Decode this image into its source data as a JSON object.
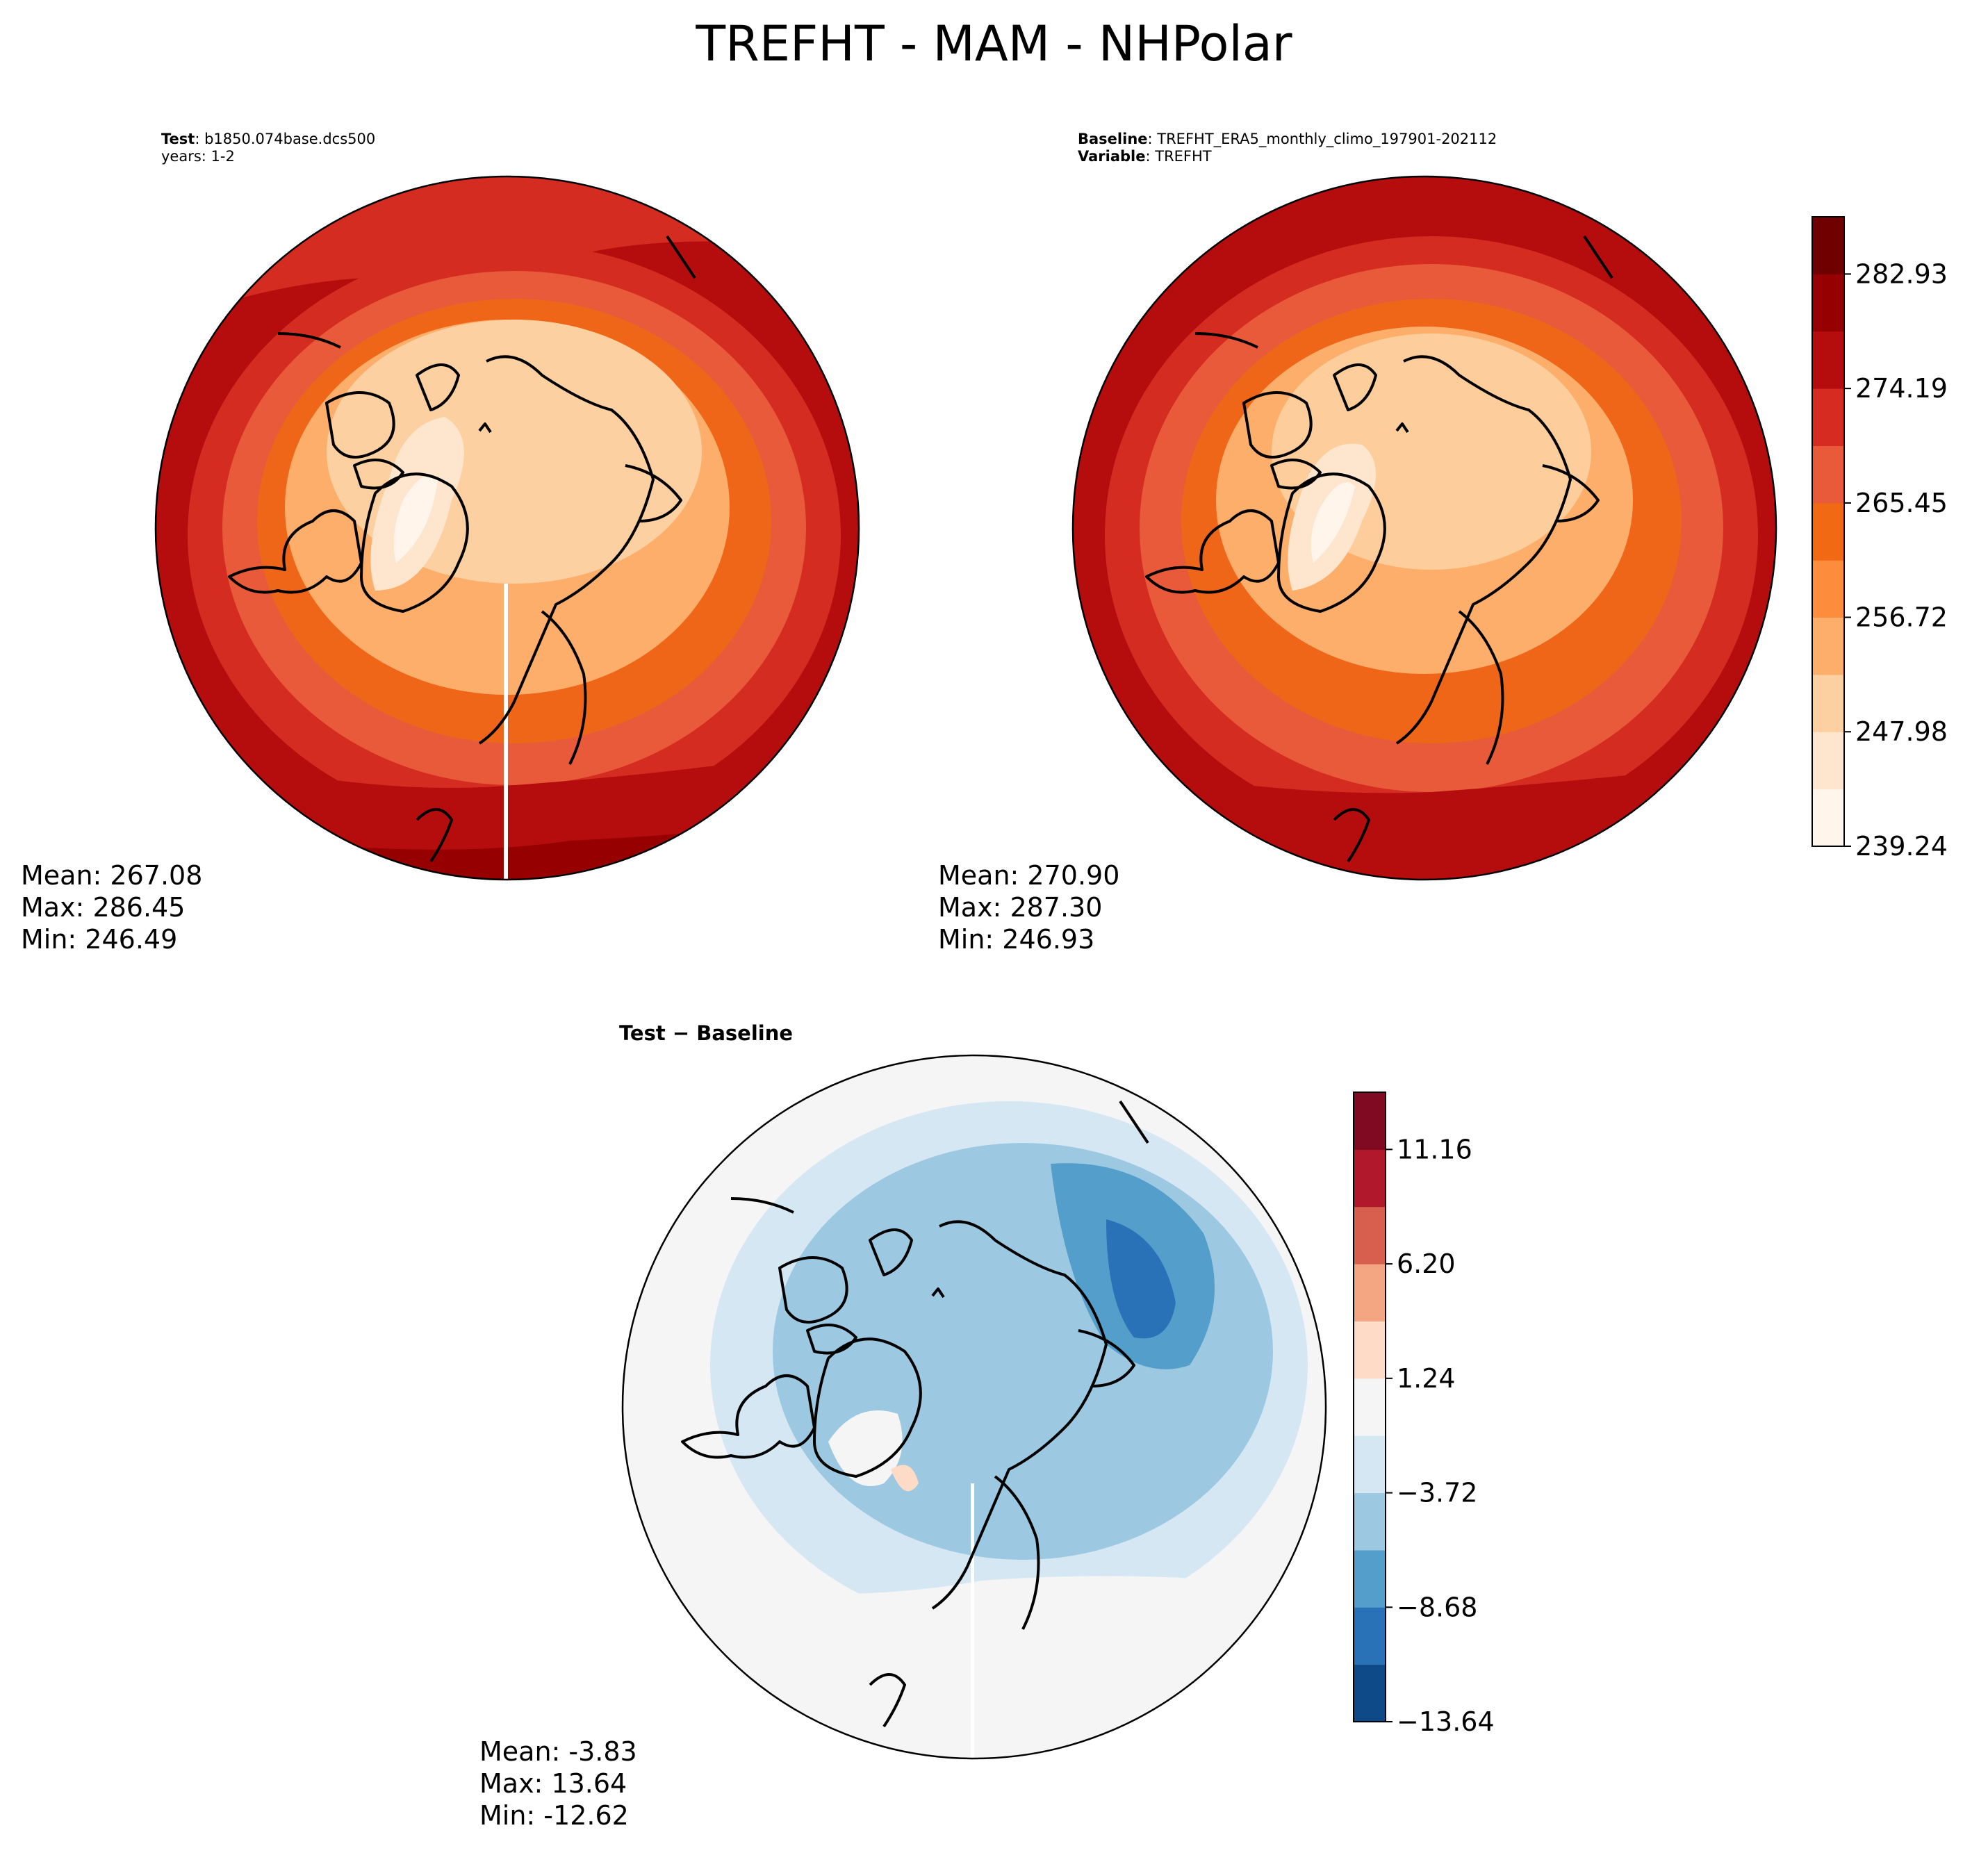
{
  "figure": {
    "title": "TREFHT - MAM - NHPolar"
  },
  "panels": {
    "test": {
      "label_bold": "Test",
      "label_value": ": b1850.074base.dcs500",
      "years": "years: 1-2",
      "stats": {
        "mean": "Mean: 267.08",
        "max": "Max: 286.45",
        "min": "Min: 246.49"
      }
    },
    "baseline": {
      "label_bold": "Baseline",
      "label_value": ": TREFHT_ERA5_monthly_climo_197901-202112",
      "variable_bold": "Variable",
      "variable_value": ": TREFHT",
      "stats": {
        "mean": "Mean: 270.90",
        "max": "Max: 287.30",
        "min": "Min: 246.93"
      }
    },
    "diff": {
      "title": "Test − Baseline",
      "stats": {
        "mean": "Mean: -3.83",
        "max": "Max: 13.64",
        "min": "Min: -12.62"
      }
    }
  },
  "chart_data": [
    {
      "type": "heatmap",
      "title": "TREFHT - MAM - NHPolar (Test)",
      "projection": "north-polar-stereographic",
      "colormap": "Reds",
      "mean": 267.08,
      "max": 286.45,
      "min": 246.49
    },
    {
      "type": "heatmap",
      "title": "TREFHT - MAM - NHPolar (Baseline)",
      "projection": "north-polar-stereographic",
      "colormap": "Reds",
      "mean": 270.9,
      "max": 287.3,
      "min": 246.93,
      "colorbar": {
        "range": [
          239.24,
          287.3
        ],
        "levels": 11,
        "ticks": [
          239.24,
          247.98,
          256.72,
          265.45,
          274.19,
          282.93
        ],
        "tick_labels": [
          "239.24",
          "247.98",
          "256.72",
          "265.45",
          "274.19",
          "282.93"
        ],
        "colors": [
          "#fff5eb",
          "#fee6ce",
          "#fdd0a2",
          "#fdae6b",
          "#fd8d3c",
          "#f16913",
          "#e85a3a",
          "#d42c20",
          "#b50d0d",
          "#960000",
          "#6e0000"
        ]
      }
    },
    {
      "type": "heatmap",
      "title": "Test − Baseline",
      "projection": "north-polar-stereographic",
      "colormap": "RdBu_r",
      "mean": -3.83,
      "max": 13.64,
      "min": -12.62,
      "colorbar": {
        "range": [
          -13.64,
          13.64
        ],
        "levels": 11,
        "ticks": [
          -13.64,
          -8.68,
          -3.72,
          1.24,
          6.2,
          11.16
        ],
        "tick_labels": [
          "−13.64",
          "−8.68",
          "−3.72",
          "1.24",
          "6.20",
          "11.16"
        ],
        "colors": [
          "#0d4a87",
          "#2a72b8",
          "#549ecb",
          "#9cc9e1",
          "#d5e7f2",
          "#f5f5f5",
          "#fddbc7",
          "#f4a582",
          "#d6604d",
          "#b2182b",
          "#7f0a22"
        ]
      }
    }
  ]
}
